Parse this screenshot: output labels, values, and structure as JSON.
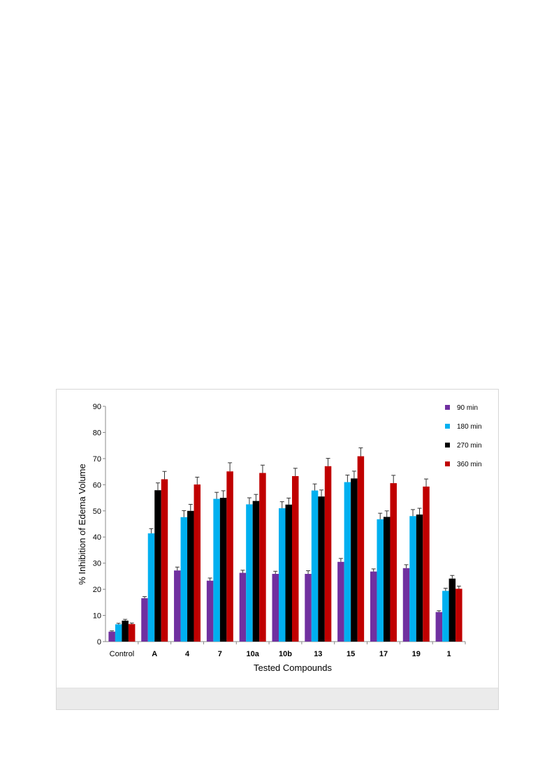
{
  "chart_data": {
    "type": "bar",
    "xlabel": "Tested Compounds",
    "ylabel": "% Inhibition of Edema Volume",
    "ylim": [
      0,
      90
    ],
    "yticks": [
      0,
      10,
      20,
      30,
      40,
      50,
      60,
      70,
      80,
      90
    ],
    "grid": false,
    "legend_position": "top-right",
    "categories": [
      "Control",
      "A",
      "4",
      "7",
      "10a",
      "10b",
      "13",
      "15",
      "17",
      "19",
      "1"
    ],
    "bold_categories": [
      "A",
      "4",
      "7",
      "10a",
      "10b",
      "13",
      "15",
      "17",
      "19",
      "1"
    ],
    "series": [
      {
        "name": "90 min",
        "color": "#7030a0",
        "values": [
          3.8,
          16.6,
          27.2,
          23.3,
          26.3,
          25.9,
          25.9,
          30.5,
          26.8,
          28.1,
          11.3
        ],
        "errors": [
          0.3,
          0.6,
          1.3,
          1.0,
          1.0,
          1.0,
          1.2,
          1.3,
          1.0,
          1.3,
          0.5
        ]
      },
      {
        "name": "180 min",
        "color": "#00b0f0",
        "values": [
          6.6,
          41.4,
          47.6,
          54.6,
          52.5,
          51.0,
          57.8,
          61.0,
          46.8,
          48.0,
          19.4
        ],
        "errors": [
          0.4,
          1.8,
          2.5,
          2.5,
          2.5,
          2.5,
          2.5,
          2.7,
          2.3,
          2.5,
          1.0
        ]
      },
      {
        "name": "270 min",
        "color": "#000000",
        "values": [
          8.0,
          57.9,
          50.0,
          55.0,
          53.8,
          52.4,
          55.5,
          62.4,
          47.7,
          48.6,
          24.1
        ],
        "errors": [
          0.5,
          2.8,
          2.5,
          2.7,
          2.5,
          2.5,
          2.5,
          2.8,
          2.3,
          2.4,
          1.2
        ]
      },
      {
        "name": "360 min",
        "color": "#c00000",
        "values": [
          6.7,
          62.1,
          60.1,
          65.1,
          64.5,
          63.3,
          67.1,
          70.9,
          60.6,
          59.3,
          20.2
        ],
        "errors": [
          0.4,
          3.0,
          2.8,
          3.3,
          3.0,
          3.0,
          3.0,
          3.2,
          3.0,
          2.9,
          1.0
        ]
      }
    ]
  }
}
